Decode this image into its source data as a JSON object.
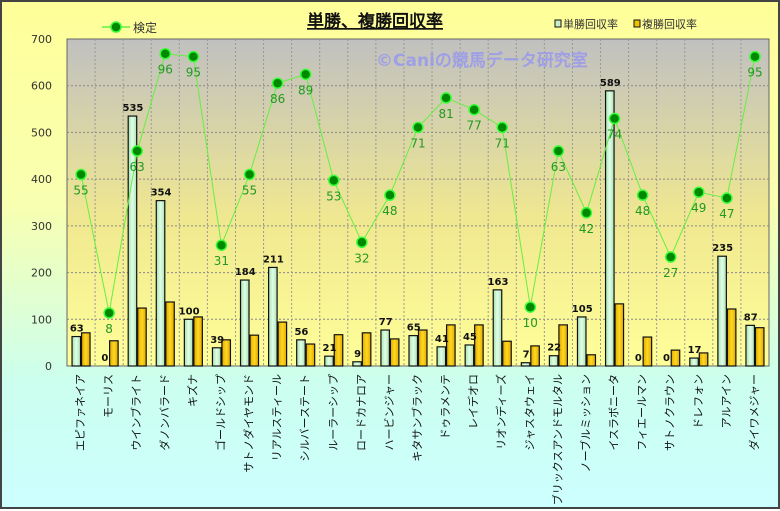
{
  "chart_data": {
    "type": "bar",
    "title": "単勝、複勝回収率",
    "watermark": "©Caniの競馬データ研究室",
    "categories": [
      "エピファネイア",
      "モーリス",
      "ウインブライト",
      "ダノンバラード",
      "キズナ",
      "ゴールドシップ",
      "サトノダイヤモンド",
      "リアルスティール",
      "シルバーステート",
      "ルーラーシップ",
      "ロードカナロア",
      "ハービンジャー",
      "キタサンブラック",
      "ドゥラメンテ",
      "レイデオロ",
      "リオンディーズ",
      "ジャスタウェイ",
      "ブリックスアンドモルタル",
      "ノーブルミッション",
      "イスラボニータ",
      "フィエールマン",
      "サトノクラウン",
      "ドレフォン",
      "アルアイン",
      "ダイワメジャー"
    ],
    "series": [
      {
        "name": "単勝回収率",
        "type": "bar",
        "color": "#c8f0c8",
        "values": [
          63,
          0,
          535,
          354,
          100,
          39,
          184,
          211,
          56,
          21,
          9,
          77,
          65,
          41,
          45,
          163,
          7,
          22,
          105,
          589,
          0,
          0,
          17,
          235,
          87
        ]
      },
      {
        "name": "複勝回収率",
        "type": "bar",
        "color": "#f0c000",
        "values": [
          71,
          54,
          124,
          137,
          105,
          56,
          66,
          94,
          47,
          67,
          71,
          58,
          77,
          88,
          88,
          53,
          43,
          88,
          24,
          133,
          62,
          34,
          28,
          122,
          82
        ]
      },
      {
        "name": "検定",
        "type": "line",
        "axis": "secondary",
        "color": "#66ee44",
        "values": [
          55,
          8,
          63,
          96,
          95,
          31,
          55,
          86,
          89,
          53,
          32,
          48,
          71,
          81,
          77,
          71,
          10,
          63,
          42,
          74,
          48,
          27,
          49,
          47,
          95
        ]
      }
    ],
    "yticks": [
      "0",
      "100",
      "200",
      "300",
      "400",
      "500",
      "600",
      "700"
    ],
    "ylim": [
      0,
      700
    ],
    "y2lim": [
      -10,
      101
    ],
    "grid": true,
    "legend": {
      "line": "検定",
      "bars": [
        "単勝回収率",
        "複勝回収率"
      ]
    }
  }
}
